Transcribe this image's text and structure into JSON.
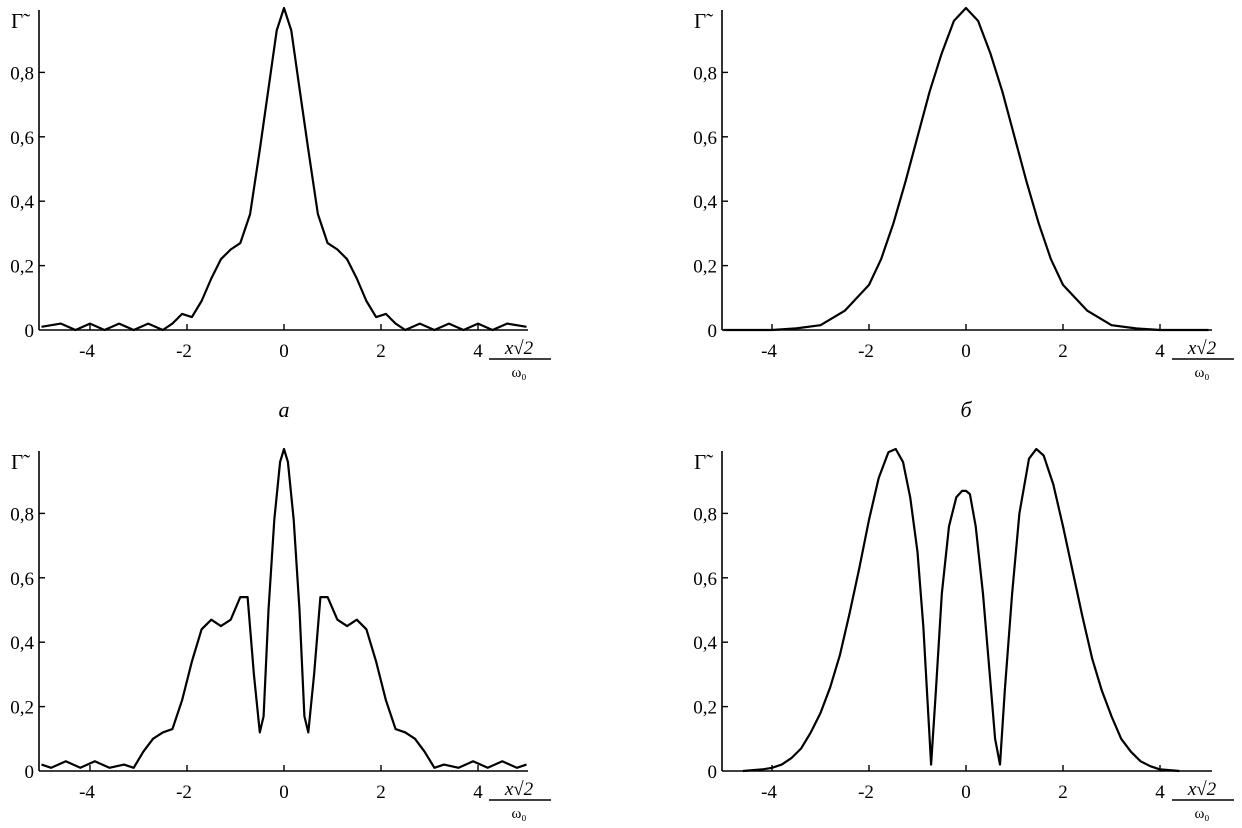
{
  "chart_data": [
    {
      "type": "line",
      "caption": "а",
      "ylabel": "Γ̃",
      "xlabel_num": "x√2",
      "xlabel_den": "ω₀",
      "xlim": [
        -5,
        5
      ],
      "ylim": [
        0,
        1
      ],
      "x_ticks": [
        -4,
        -2,
        0,
        2,
        4
      ],
      "x_tick_labels": [
        "-4",
        "-2",
        "0",
        "2",
        "4"
      ],
      "y_ticks": [
        0,
        0.2,
        0.4,
        0.6,
        0.8
      ],
      "y_tick_labels": [
        "0",
        "0,2",
        "0,4",
        "0,6",
        "0,8"
      ],
      "series": [
        {
          "x": [
            -5.0,
            -4.6,
            -4.3,
            -4.0,
            -3.7,
            -3.4,
            -3.1,
            -2.8,
            -2.5,
            -2.3,
            -2.1,
            -1.9,
            -1.7,
            -1.5,
            -1.3,
            -1.1,
            -0.9,
            -0.7,
            -0.5,
            -0.3,
            -0.15,
            0.0,
            0.15,
            0.3,
            0.5,
            0.7,
            0.9,
            1.1,
            1.3,
            1.5,
            1.7,
            1.9,
            2.1,
            2.3,
            2.5,
            2.8,
            3.1,
            3.4,
            3.7,
            4.0,
            4.3,
            4.6,
            5.0
          ],
          "y": [
            0.01,
            0.02,
            0.0,
            0.02,
            0.0,
            0.02,
            0.0,
            0.02,
            0.0,
            0.02,
            0.05,
            0.04,
            0.09,
            0.16,
            0.22,
            0.25,
            0.27,
            0.36,
            0.56,
            0.77,
            0.93,
            1.0,
            0.93,
            0.77,
            0.56,
            0.36,
            0.27,
            0.25,
            0.22,
            0.16,
            0.09,
            0.04,
            0.05,
            0.02,
            0.0,
            0.02,
            0.0,
            0.02,
            0.0,
            0.02,
            0.0,
            0.02,
            0.01
          ]
        }
      ]
    },
    {
      "type": "line",
      "caption": "б",
      "ylabel": "Γ̃",
      "xlabel_num": "x√2",
      "xlabel_den": "ω₀",
      "xlim": [
        -5,
        5
      ],
      "ylim": [
        0,
        1
      ],
      "x_ticks": [
        -4,
        -2,
        0,
        2,
        4
      ],
      "x_tick_labels": [
        "-4",
        "-2",
        "0",
        "2",
        "4"
      ],
      "y_ticks": [
        0,
        0.2,
        0.4,
        0.6,
        0.8
      ],
      "y_tick_labels": [
        "0",
        "0,2",
        "0,4",
        "0,6",
        "0,8"
      ],
      "series": [
        {
          "x": [
            -5.0,
            -4.5,
            -4.0,
            -3.5,
            -3.0,
            -2.5,
            -2.0,
            -1.75,
            -1.5,
            -1.25,
            -1.0,
            -0.75,
            -0.5,
            -0.25,
            0.0,
            0.25,
            0.5,
            0.75,
            1.0,
            1.25,
            1.5,
            1.75,
            2.0,
            2.5,
            3.0,
            3.5,
            4.0,
            4.5,
            5.0
          ],
          "y": [
            0.0,
            0.0,
            0.0,
            0.005,
            0.015,
            0.06,
            0.14,
            0.22,
            0.33,
            0.46,
            0.6,
            0.74,
            0.86,
            0.96,
            1.0,
            0.96,
            0.86,
            0.74,
            0.6,
            0.46,
            0.33,
            0.22,
            0.14,
            0.06,
            0.015,
            0.005,
            0.0,
            0.0,
            0.0
          ]
        }
      ]
    },
    {
      "type": "line",
      "caption": "",
      "ylabel": "Γ̃",
      "xlabel_num": "x√2",
      "xlabel_den": "ω₀",
      "xlim": [
        -5,
        5
      ],
      "ylim": [
        0,
        1
      ],
      "x_ticks": [
        -4,
        -2,
        0,
        2,
        4
      ],
      "x_tick_labels": [
        "-4",
        "-2",
        "0",
        "2",
        "4"
      ],
      "y_ticks": [
        0,
        0.2,
        0.4,
        0.6,
        0.8
      ],
      "y_tick_labels": [
        "0",
        "0,2",
        "0,4",
        "0,6",
        "0,8"
      ],
      "series": [
        {
          "x": [
            -5.0,
            -4.8,
            -4.5,
            -4.2,
            -3.9,
            -3.6,
            -3.3,
            -3.1,
            -2.9,
            -2.7,
            -2.5,
            -2.3,
            -2.1,
            -1.9,
            -1.7,
            -1.5,
            -1.3,
            -1.1,
            -0.9,
            -0.75,
            -0.62,
            -0.5,
            -0.42,
            -0.32,
            -0.2,
            -0.08,
            0.0,
            0.08,
            0.2,
            0.32,
            0.42,
            0.5,
            0.62,
            0.75,
            0.9,
            1.1,
            1.3,
            1.5,
            1.7,
            1.9,
            2.1,
            2.3,
            2.5,
            2.7,
            2.9,
            3.1,
            3.3,
            3.6,
            3.9,
            4.2,
            4.5,
            4.8,
            5.0
          ],
          "y": [
            0.02,
            0.01,
            0.03,
            0.01,
            0.03,
            0.01,
            0.02,
            0.01,
            0.06,
            0.1,
            0.12,
            0.13,
            0.22,
            0.34,
            0.44,
            0.47,
            0.45,
            0.47,
            0.54,
            0.54,
            0.3,
            0.12,
            0.17,
            0.5,
            0.78,
            0.96,
            1.0,
            0.96,
            0.78,
            0.5,
            0.17,
            0.12,
            0.3,
            0.54,
            0.54,
            0.47,
            0.45,
            0.47,
            0.44,
            0.34,
            0.22,
            0.13,
            0.12,
            0.1,
            0.06,
            0.01,
            0.02,
            0.01,
            0.03,
            0.01,
            0.03,
            0.01,
            0.02
          ]
        }
      ]
    },
    {
      "type": "line",
      "caption": "",
      "ylabel": "Γ̃",
      "xlabel_num": "x√2",
      "xlabel_den": "ω₀",
      "xlim": [
        -5,
        5
      ],
      "ylim": [
        0,
        1
      ],
      "x_ticks": [
        -4,
        -2,
        0,
        2,
        4
      ],
      "x_tick_labels": [
        "-4",
        "-2",
        "0",
        "2",
        "4"
      ],
      "y_ticks": [
        0,
        0.2,
        0.4,
        0.6,
        0.8
      ],
      "y_tick_labels": [
        "0",
        "0,2",
        "0,4",
        "0,6",
        "0,8"
      ],
      "series": [
        {
          "x": [
            -4.6,
            -4.2,
            -4.0,
            -3.8,
            -3.6,
            -3.4,
            -3.2,
            -3.0,
            -2.8,
            -2.6,
            -2.4,
            -2.2,
            -2.0,
            -1.8,
            -1.6,
            -1.45,
            -1.3,
            -1.15,
            -1.0,
            -0.88,
            -0.78,
            -0.72,
            -0.62,
            -0.5,
            -0.35,
            -0.2,
            -0.08,
            0.0,
            0.08,
            0.2,
            0.35,
            0.5,
            0.6,
            0.7,
            0.8,
            0.95,
            1.1,
            1.3,
            1.45,
            1.6,
            1.8,
            2.0,
            2.2,
            2.4,
            2.6,
            2.8,
            3.0,
            3.2,
            3.4,
            3.6,
            3.8,
            4.0,
            4.4
          ],
          "y": [
            0.0,
            0.005,
            0.01,
            0.02,
            0.04,
            0.07,
            0.12,
            0.18,
            0.26,
            0.36,
            0.49,
            0.63,
            0.78,
            0.91,
            0.99,
            1.0,
            0.96,
            0.85,
            0.68,
            0.45,
            0.18,
            0.02,
            0.25,
            0.55,
            0.76,
            0.85,
            0.87,
            0.87,
            0.86,
            0.76,
            0.55,
            0.28,
            0.1,
            0.02,
            0.25,
            0.55,
            0.8,
            0.97,
            1.0,
            0.98,
            0.89,
            0.76,
            0.62,
            0.48,
            0.35,
            0.25,
            0.17,
            0.1,
            0.06,
            0.03,
            0.015,
            0.005,
            0.0
          ]
        }
      ]
    }
  ]
}
